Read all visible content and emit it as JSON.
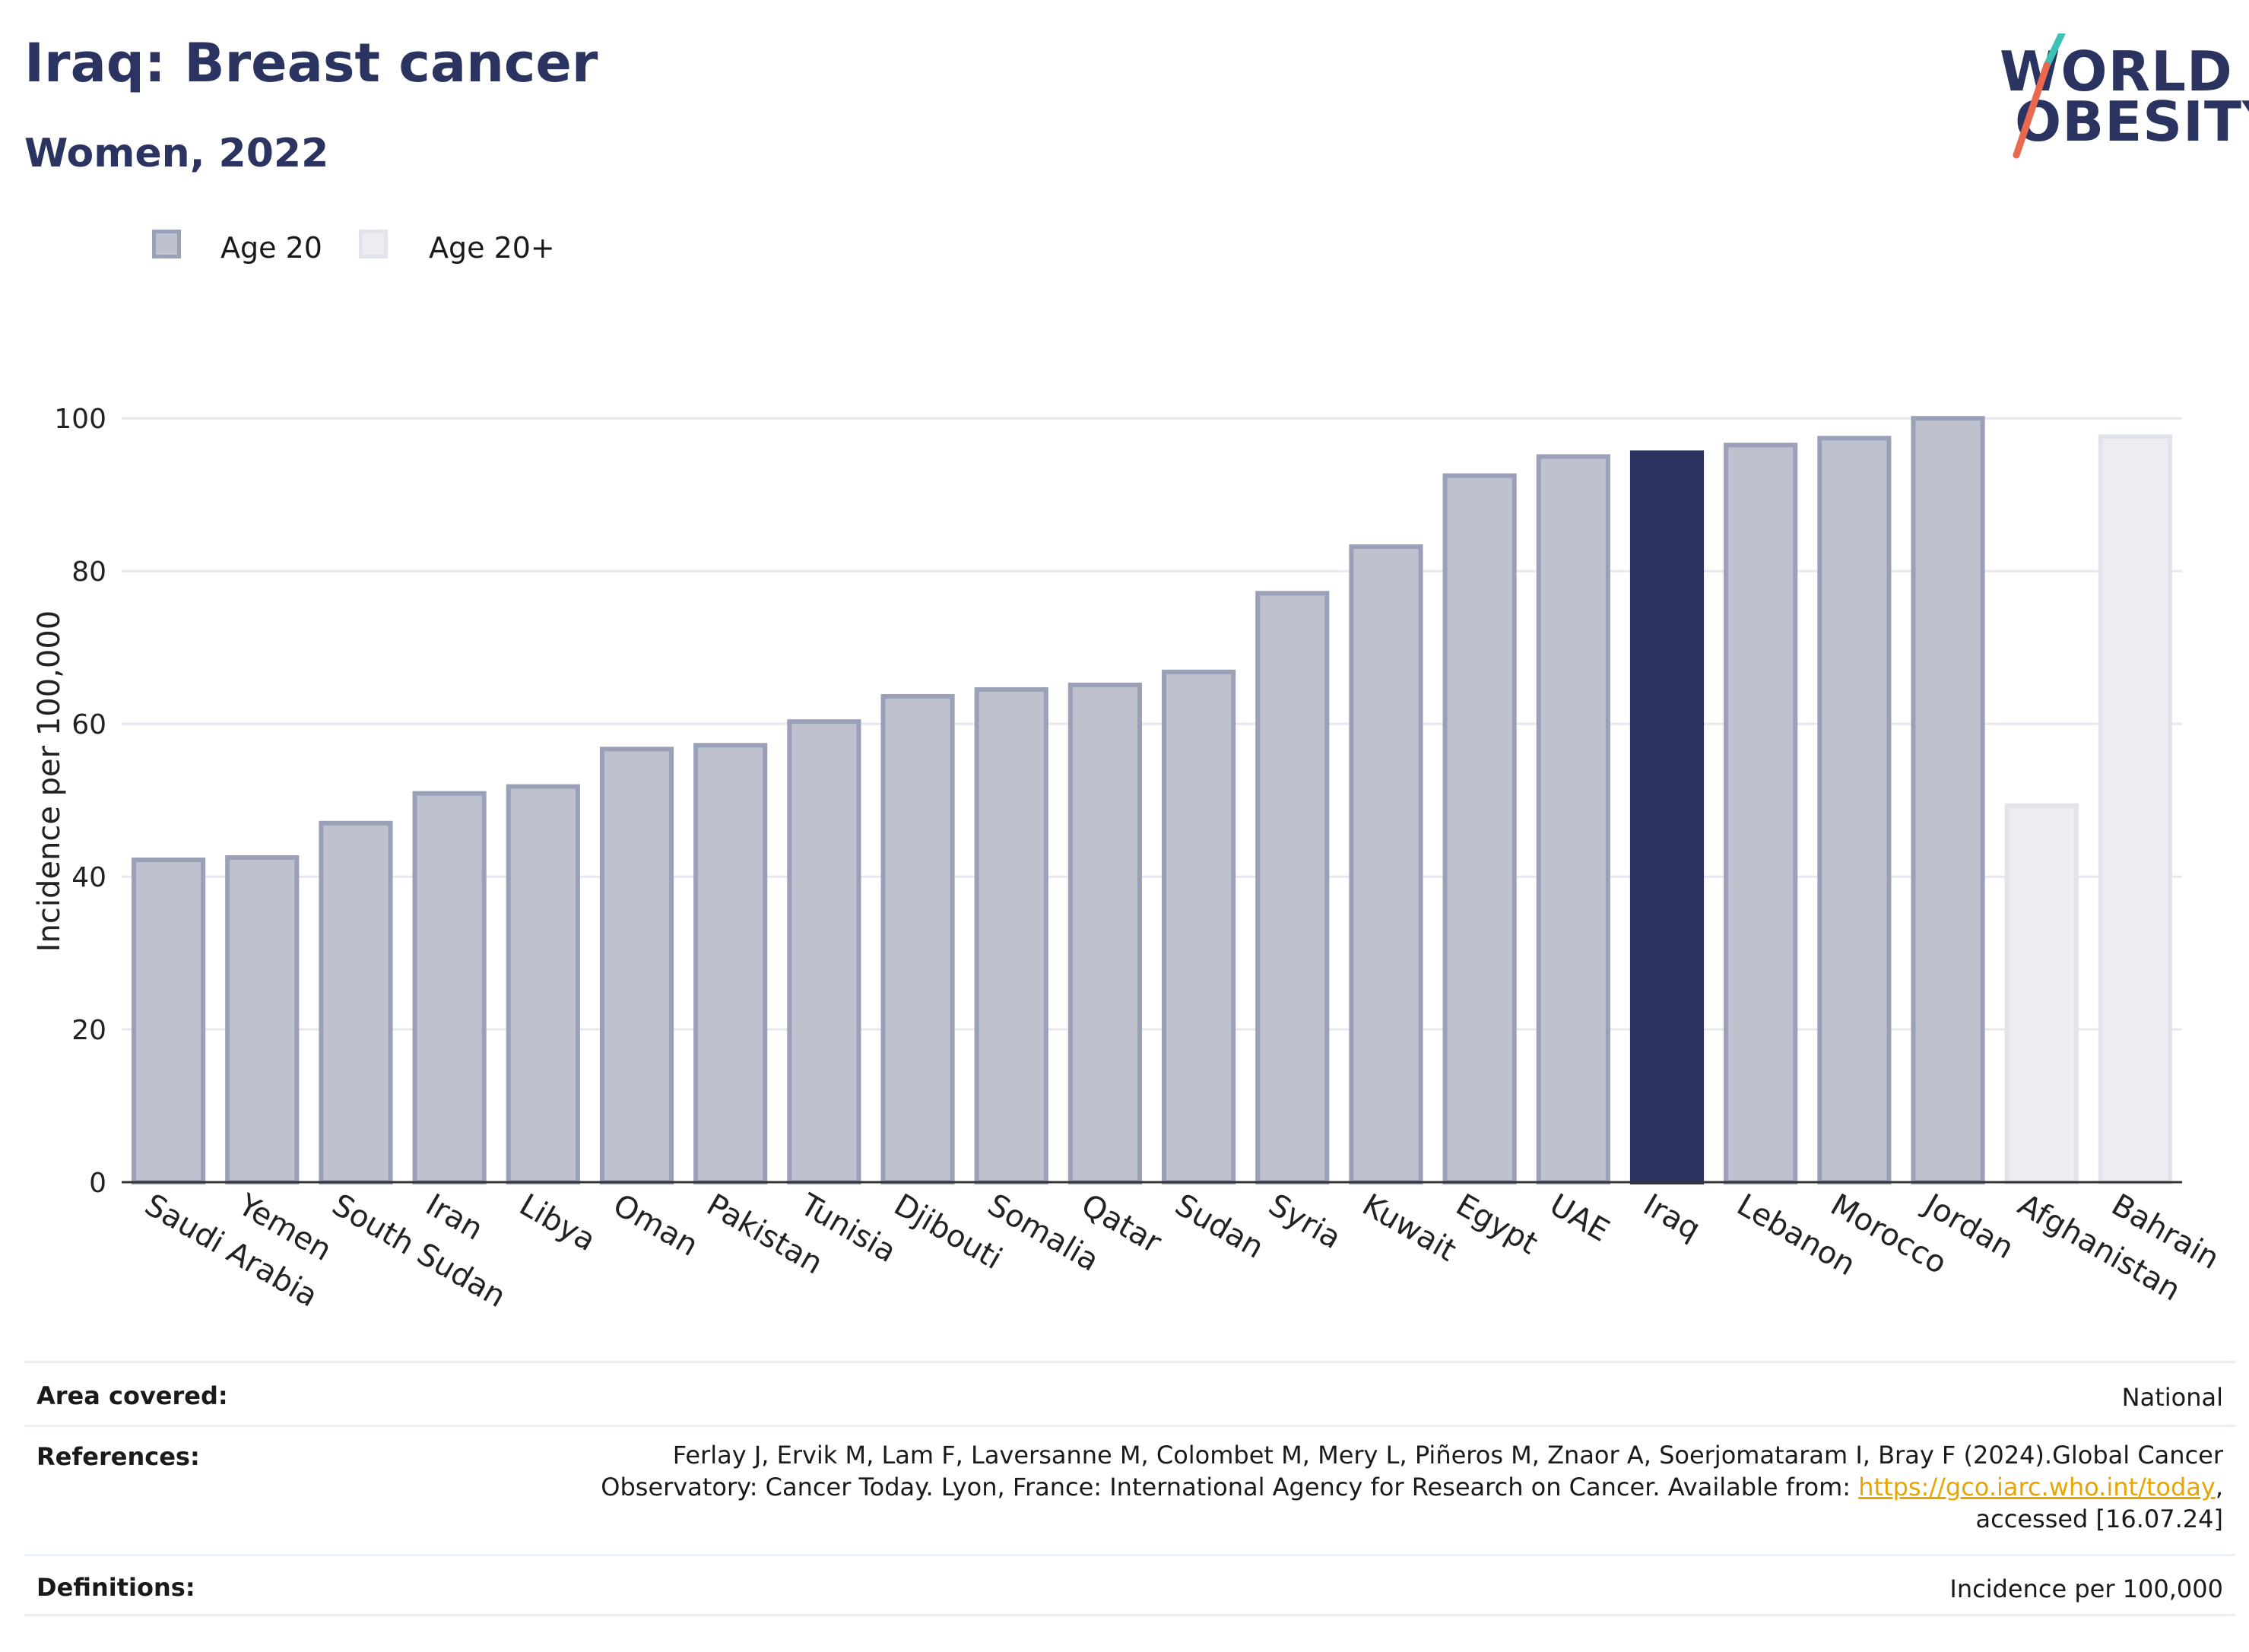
{
  "header": {
    "title": "Iraq: Breast cancer",
    "subtitle": "Women, 2022"
  },
  "logo": {
    "line1": "WORLD",
    "line2": "OBESITY",
    "colors": {
      "navy": "#2b3460",
      "teal": "#3cc1b7",
      "coral": "#e8694f"
    }
  },
  "legend": [
    {
      "label": "Age 20",
      "fill": "#bfc2ce",
      "stroke": "#9aa0b8"
    },
    {
      "label": "Age 20+",
      "fill": "#ecedf2",
      "stroke": "#e2e4eb"
    }
  ],
  "colors": {
    "highlight": "#2b3460",
    "grid": "#e6e8ef",
    "axis": "#333333"
  },
  "chart_data": {
    "type": "bar",
    "ylabel": "Incidence per 100,000",
    "ylim": [
      0,
      105
    ],
    "yticks": [
      0,
      20,
      40,
      60,
      80,
      100
    ],
    "grid": true,
    "legend_position": "top-left",
    "categories": [
      "Saudi Arabia",
      "Yemen",
      "South Sudan",
      "Iran",
      "Libya",
      "Oman",
      "Pakistan",
      "Tunisia",
      "Djibouti",
      "Somalia",
      "Qatar",
      "Sudan",
      "Syria",
      "Kuwait",
      "Egypt",
      "UAE",
      "Iraq",
      "Lebanon",
      "Morocco",
      "Jordan",
      "Afghanistan",
      "Bahrain"
    ],
    "values": [
      42.2,
      42.5,
      47.0,
      50.9,
      51.8,
      56.7,
      57.2,
      60.3,
      63.6,
      64.5,
      65.1,
      66.8,
      77.1,
      83.2,
      92.5,
      95.0,
      95.5,
      96.5,
      97.4,
      100.0,
      49.3,
      97.6
    ],
    "groups": [
      "Age 20",
      "Age 20",
      "Age 20",
      "Age 20",
      "Age 20",
      "Age 20",
      "Age 20",
      "Age 20",
      "Age 20",
      "Age 20",
      "Age 20",
      "Age 20",
      "Age 20",
      "Age 20",
      "Age 20",
      "Age 20",
      "Age 20",
      "Age 20",
      "Age 20",
      "Age 20",
      "Age 20+",
      "Age 20+"
    ],
    "highlight": "Iraq"
  },
  "footer": {
    "area_label": "Area covered:",
    "area_value": "National",
    "references_label": "References:",
    "references_text_1": "Ferlay J, Ervik M, Lam F, Laversanne M, Colombet M, Mery L, Piñeros M, Znaor A, Soerjomataram I, Bray F (2024).Global Cancer",
    "references_text_2": "Observatory: Cancer Today. Lyon, France: International Agency for Research on Cancer. Available from: ",
    "references_link": "https://gco.iarc.who.int/today",
    "references_text_3": ",",
    "references_text_4": "accessed [16.07.24]",
    "definitions_label": "Definitions:",
    "definitions_value": "Incidence per 100,000"
  }
}
